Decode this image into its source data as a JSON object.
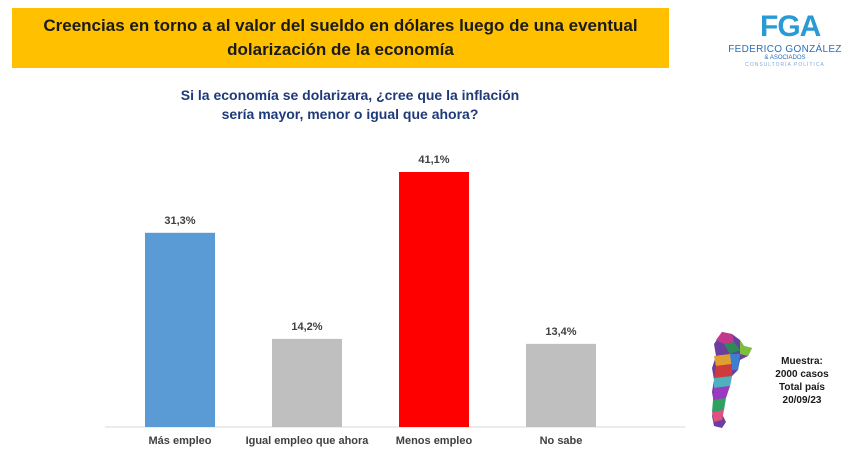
{
  "header": {
    "title_line1": "Creencias en torno a al valor del sueldo en dólares luego de una eventual",
    "title_line2": "dolarización de la economía"
  },
  "logo": {
    "mark": "FGA",
    "name": "FEDERICO GONZÁLEZ",
    "sub": "& ASOCIADOS",
    "sub2": "CONSULTORÍA POLÍTICA"
  },
  "question": {
    "line1": "Si la economía se dolarizara, ¿cree que la inflación",
    "line2": "sería mayor, menor o igual que ahora?"
  },
  "sample": {
    "line1": "Muestra:",
    "line2": "2000 casos",
    "line3": "Total país",
    "line4": "20/09/23"
  },
  "chart_data": {
    "type": "bar",
    "categories": [
      "Más empleo",
      "Igual empleo que ahora",
      "Menos empleo",
      "No sabe"
    ],
    "values": [
      31.3,
      14.2,
      41.1,
      13.4
    ],
    "labels": [
      "31,3%",
      "14,2%",
      "41,1%",
      "13,4%"
    ],
    "colors": [
      "#5b9bd5",
      "#bfbfbf",
      "#ff0000",
      "#bfbfbf"
    ],
    "ylim": [
      0,
      45
    ],
    "grid": false
  }
}
